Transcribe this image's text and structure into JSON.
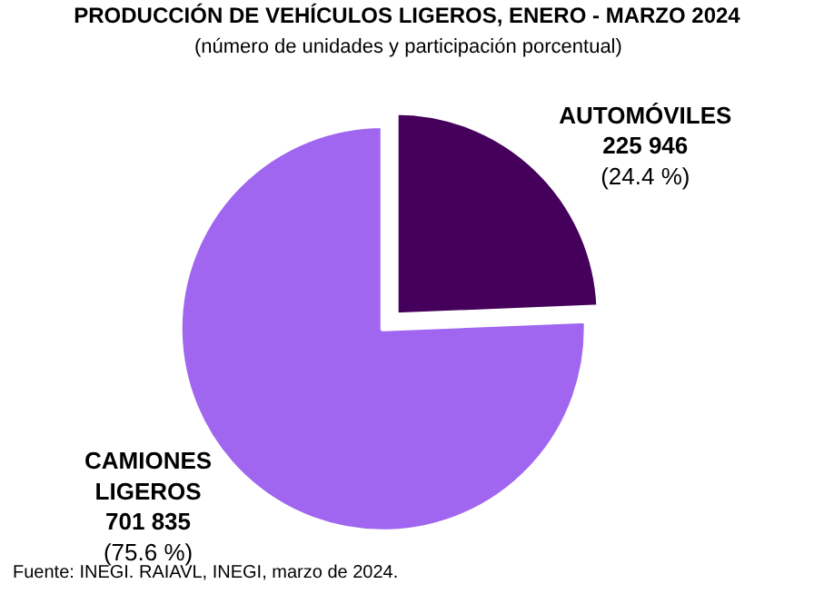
{
  "chart_data": {
    "type": "pie",
    "title": "PRODUCCIÓN DE VEHÍCULOS LIGEROS, ENERO - MARZO 2024",
    "subtitle": "(número de unidades y participación porcentual)",
    "categories": [
      "AUTOMÓVILES",
      "CAMIONES LIGEROS"
    ],
    "values": [
      225946,
      701835
    ],
    "value_labels": [
      "225 946\n(24.4 %)",
      "701 835\n(75.6 %)"
    ],
    "colors": [
      "#44005a",
      "#a066f0"
    ],
    "annotations": [
      "Fuente: INEGI. RAIAVL, INEGI, marzo de 2024."
    ],
    "legend": false
  }
}
